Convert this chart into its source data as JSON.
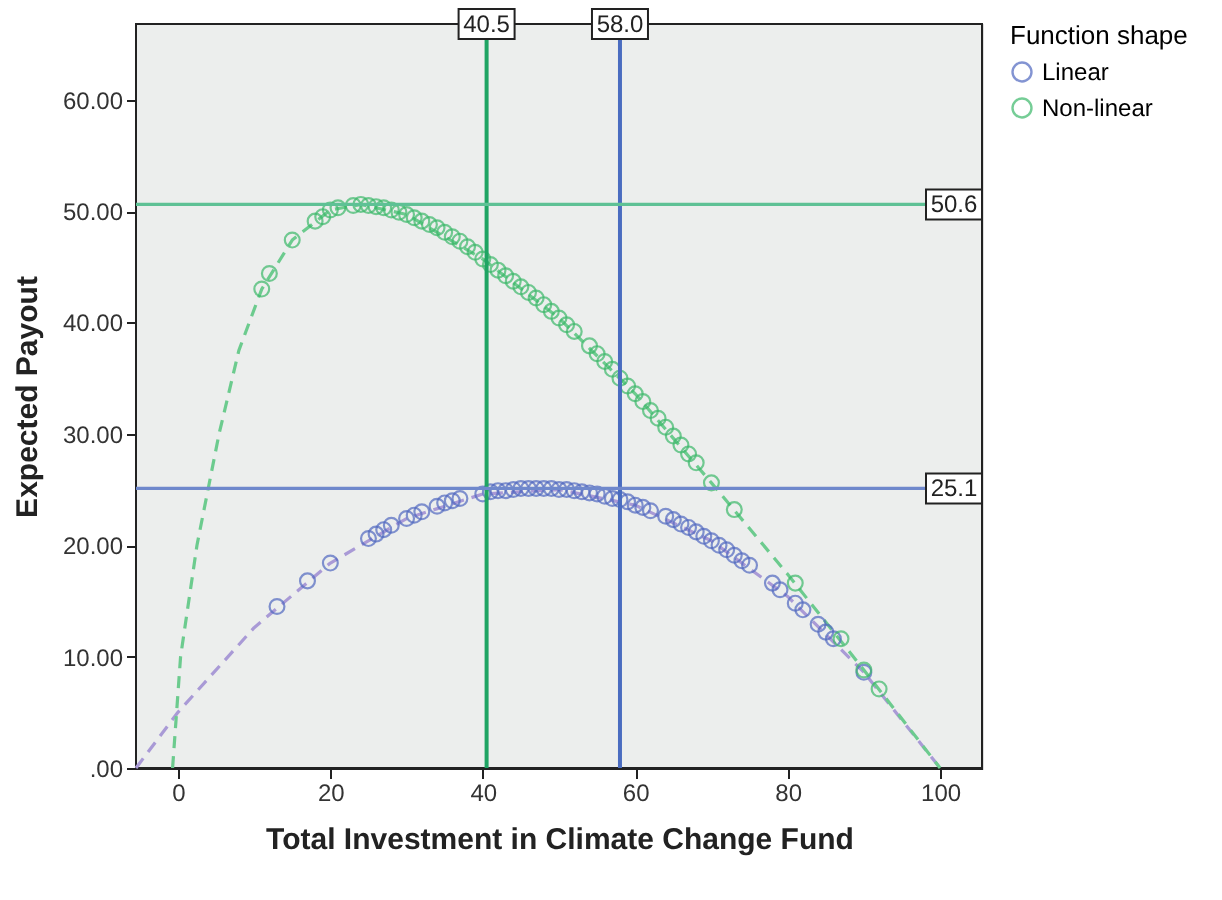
{
  "chart_data": {
    "type": "scatter",
    "xlabel": "Total Investment in Climate Change Fund",
    "ylabel": "Expected Payout",
    "legend_title": "Function shape",
    "legend": "right",
    "marker": "circle",
    "xlim": [
      -5.5,
      105.5
    ],
    "xticks": [
      0,
      20,
      40,
      60,
      80,
      100
    ],
    "ylim": [
      0,
      66.8
    ],
    "yticks": [
      {
        "value": 0,
        "label": ".00"
      },
      {
        "value": 10,
        "label": "10.00"
      },
      {
        "value": 20,
        "label": "20.00"
      },
      {
        "value": 30,
        "label": "30.00"
      },
      {
        "value": 40,
        "label": "40.00"
      },
      {
        "value": 50,
        "label": "50.00"
      },
      {
        "value": 60,
        "label": "60.00"
      }
    ],
    "series": [
      {
        "type": "line",
        "line_style": "dashed",
        "marker": "none",
        "color": "#a99ad6",
        "x": [
          -5.5,
          0,
          10,
          20,
          30,
          40,
          50,
          60,
          70,
          80,
          90,
          100
        ],
        "values": [
          0,
          5.0,
          12.6,
          18.4,
          22.4,
          24.6,
          25.0,
          23.6,
          20.4,
          15.4,
          8.6,
          0
        ]
      },
      {
        "type": "line",
        "line_style": "dashed",
        "marker": "none",
        "color": "#6ccb8e",
        "x": [
          -0.7,
          0.35,
          2.5,
          5.4,
          8,
          11,
          15,
          20,
          24,
          30,
          40,
          50,
          60,
          70,
          80,
          90,
          100
        ],
        "values": [
          0,
          10,
          20,
          30,
          37.5,
          43,
          47.4,
          50.1,
          50.6,
          49.7,
          45.7,
          40.4,
          33.6,
          25.6,
          17.4,
          8.8,
          0
        ]
      },
      {
        "name": "Linear",
        "color": "#5068c0",
        "x": [
          13,
          17,
          20,
          25,
          26,
          27,
          28,
          30,
          31,
          32,
          34,
          35,
          36,
          37,
          40,
          41,
          42,
          43,
          44,
          45,
          46,
          47,
          48,
          49,
          50,
          51,
          52,
          53,
          54,
          55,
          56,
          57,
          58,
          59,
          60,
          61,
          62,
          64,
          65,
          66,
          67,
          68,
          69,
          70,
          71,
          72,
          73,
          74,
          75,
          78,
          79,
          81,
          82,
          84,
          85,
          86,
          90
        ],
        "values": [
          14.5,
          16.8,
          18.4,
          20.6,
          21.0,
          21.4,
          21.8,
          22.4,
          22.7,
          23.0,
          23.5,
          23.8,
          24.0,
          24.2,
          24.6,
          24.8,
          24.9,
          24.9,
          25.0,
          25.1,
          25.1,
          25.1,
          25.1,
          25.1,
          25.0,
          25.0,
          24.9,
          24.8,
          24.7,
          24.6,
          24.4,
          24.2,
          24.1,
          23.9,
          23.6,
          23.4,
          23.1,
          22.6,
          22.3,
          21.9,
          21.6,
          21.2,
          20.8,
          20.4,
          20.0,
          19.6,
          19.1,
          18.6,
          18.2,
          16.6,
          16.0,
          14.8,
          14.2,
          12.9,
          12.2,
          11.6,
          8.6
        ]
      },
      {
        "name": "Non-linear",
        "color": "#3cb86a",
        "x": [
          11,
          12,
          15,
          18,
          19,
          20,
          21,
          23,
          24,
          25,
          26,
          27,
          28,
          29,
          30,
          31,
          32,
          33,
          34,
          35,
          36,
          37,
          38,
          39,
          40,
          41,
          42,
          43,
          44,
          45,
          46,
          47,
          48,
          49,
          50,
          51,
          52,
          54,
          55,
          56,
          57,
          58,
          59,
          60,
          61,
          62,
          63,
          64,
          65,
          66,
          67,
          68,
          70,
          73,
          81,
          87,
          90,
          92
        ],
        "values": [
          43.0,
          44.4,
          47.4,
          49.1,
          49.5,
          50.1,
          50.3,
          50.5,
          50.6,
          50.5,
          50.4,
          50.3,
          50.1,
          49.9,
          49.7,
          49.4,
          49.1,
          48.8,
          48.5,
          48.1,
          47.7,
          47.3,
          46.8,
          46.3,
          45.7,
          45.2,
          44.7,
          44.2,
          43.7,
          43.2,
          42.7,
          42.2,
          41.6,
          41.0,
          40.4,
          39.8,
          39.2,
          37.9,
          37.2,
          36.5,
          35.8,
          35.0,
          34.3,
          33.6,
          32.9,
          32.1,
          31.4,
          30.6,
          29.8,
          29.0,
          28.2,
          27.4,
          25.6,
          23.2,
          16.6,
          11.6,
          8.8,
          7.1
        ]
      }
    ],
    "ref_lines": [
      {
        "axis": "x",
        "value": 40.5,
        "label": "40.5",
        "color": "#1fa463"
      },
      {
        "axis": "x",
        "value": 58.0,
        "label": "58.0",
        "color": "#4a6cc0"
      },
      {
        "axis": "y",
        "value": 50.6,
        "label": "50.6",
        "color": "#5ec195"
      },
      {
        "axis": "y",
        "value": 25.1,
        "label": "25.1",
        "color": "#6f88cc"
      }
    ]
  }
}
